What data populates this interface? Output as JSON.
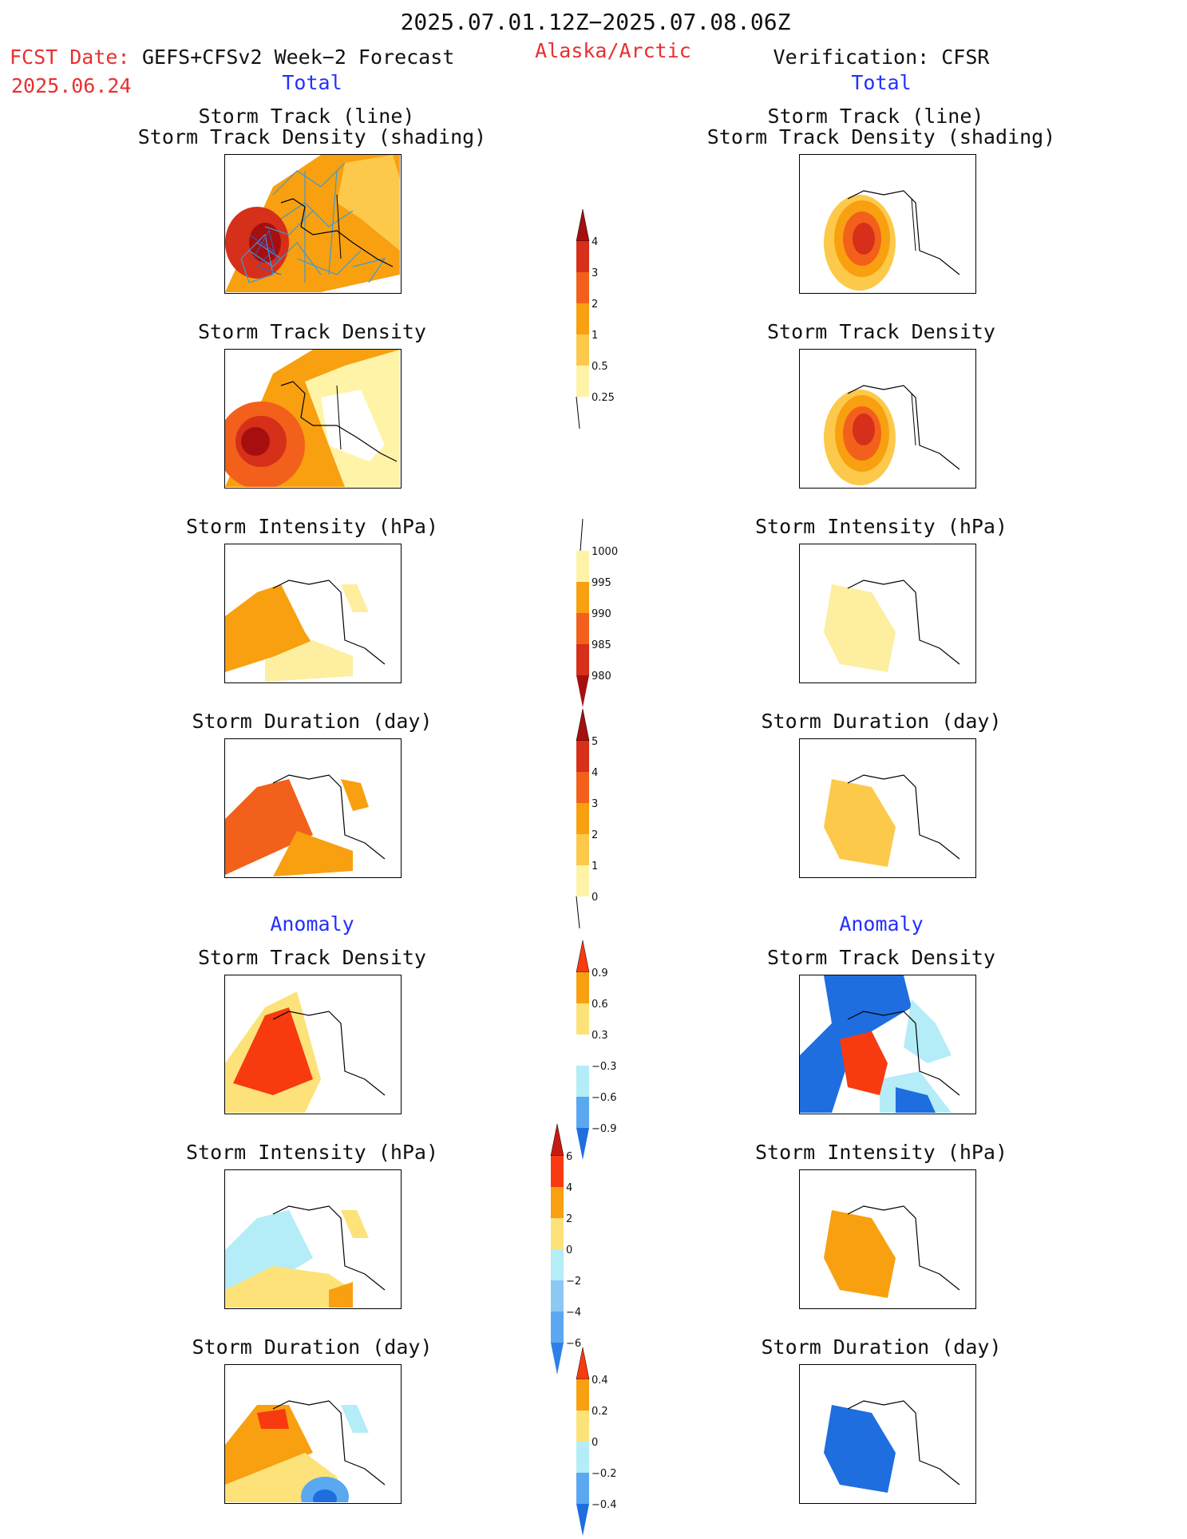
{
  "header": {
    "title": "2025.07.01.12Z−2025.07.08.06Z",
    "fcst_label": "FCST Date:",
    "fcst_model": "GEFS+CFSv2 Week−2 Forecast",
    "fcst_date": "2025.06.24",
    "region": "Alaska/Arctic",
    "verification": "Verification: CFSR"
  },
  "sections": {
    "total_left": "Total",
    "total_right": "Total",
    "anomaly_left": "Anomaly",
    "anomaly_right": "Anomaly"
  },
  "panels": {
    "p1_l1": "Storm Track (line)",
    "p1_l2": "Storm Track Density (shading)",
    "p1_r1": "Storm Track (line)",
    "p1_r2": "Storm Track Density (shading)",
    "p2_l": "Storm Track Density",
    "p2_r": "Storm Track Density",
    "p3_l": "Storm Intensity (hPa)",
    "p3_r": "Storm Intensity (hPa)",
    "p4_l": "Storm Duration (day)",
    "p4_r": "Storm Duration (day)",
    "p5_l": "Storm Track Density",
    "p5_r": "Storm Track Density",
    "p6_l": "Storm Intensity (hPa)",
    "p6_r": "Storm Intensity (hPa)",
    "p7_l": "Storm Duration (day)",
    "p7_r": "Storm Duration (day)"
  },
  "colorbars": [
    {
      "name": "total-density",
      "labels": [
        "4",
        "3",
        "2",
        "1",
        "0.5",
        "0.25"
      ],
      "colors": [
        "#a50f0f",
        "#d62f1a",
        "#f2601b",
        "#f8a010",
        "#fdc94a",
        "#fff3a8"
      ]
    },
    {
      "name": "total-intensity",
      "labels": [
        "1000",
        "995",
        "990",
        "985",
        "980"
      ],
      "colors": [
        "#fff3a8",
        "#f8a010",
        "#f2601b",
        "#d62f1a",
        "#a50f0f"
      ]
    },
    {
      "name": "total-duration",
      "labels": [
        "5",
        "4",
        "3",
        "2",
        "1",
        "0"
      ],
      "colors": [
        "#a50f0f",
        "#d62f1a",
        "#f2601b",
        "#f8a010",
        "#fdc94a",
        "#fff3a8"
      ]
    },
    {
      "name": "anom-density",
      "labels": [
        "0.9",
        "0.6",
        "0.3",
        "−0.3",
        "−0.6",
        "−0.9"
      ],
      "colors": [
        "#f83a10",
        "#f8a010",
        "#fde27a",
        "#ffffff",
        "#b4ecf8",
        "#5aa8f0",
        "#1e6ee0"
      ]
    },
    {
      "name": "anom-intensity",
      "labels": [
        "6",
        "4",
        "2",
        "0",
        "−2",
        "−4",
        "−6"
      ],
      "colors": [
        "#c81a10",
        "#f83a10",
        "#f8a010",
        "#fde27a",
        "#b4ecf8",
        "#8cc8f4",
        "#5aa8f0",
        "#2e80e8"
      ]
    },
    {
      "name": "anom-duration",
      "labels": [
        "0.4",
        "0.2",
        "0",
        "−0.2",
        "−0.4"
      ],
      "colors": [
        "#f83a10",
        "#f8a010",
        "#fde27a",
        "#b4ecf8",
        "#5aa8f0",
        "#1e6ee0"
      ]
    }
  ]
}
